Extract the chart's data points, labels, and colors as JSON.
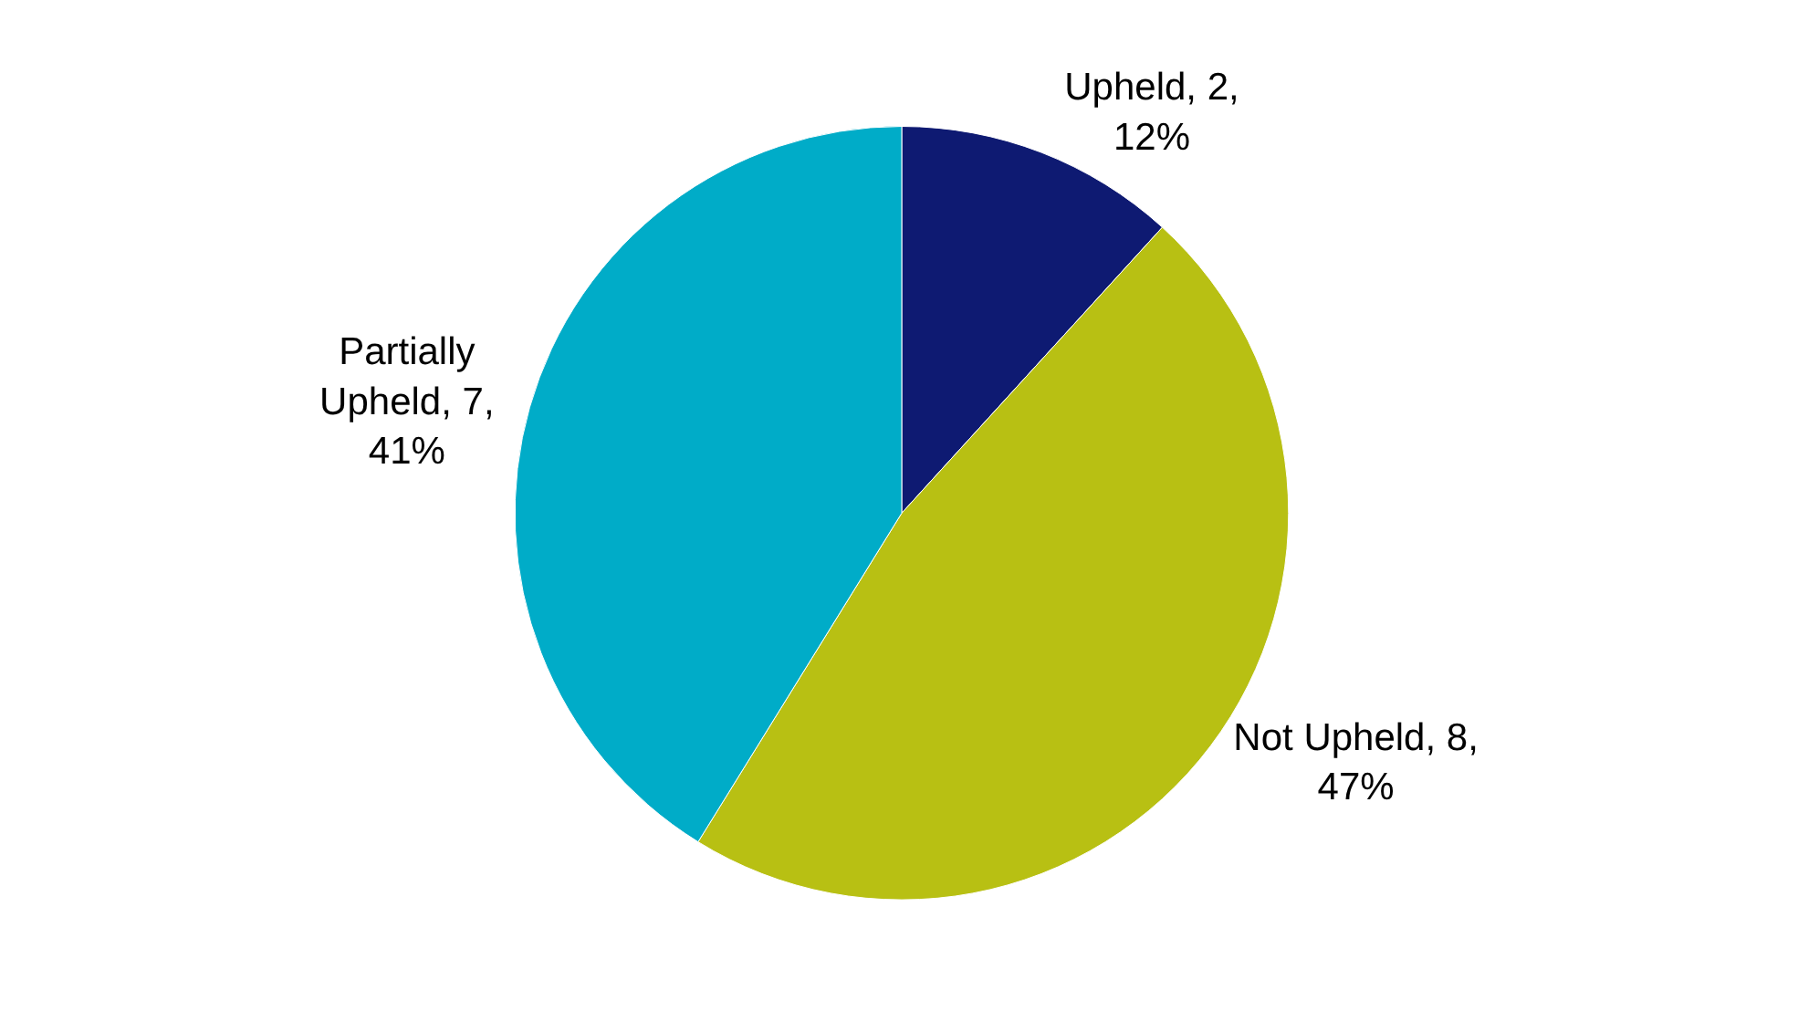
{
  "chart_data": {
    "type": "pie",
    "categories": [
      "Upheld",
      "Not Upheld",
      "Partially Upheld"
    ],
    "values": [
      2,
      8,
      7
    ],
    "value_labels": [
      "2, 12%",
      "8, 47%",
      "7, 41%"
    ],
    "colors": [
      "#0e1a72",
      "#b8c013",
      "#00acc8"
    ]
  }
}
